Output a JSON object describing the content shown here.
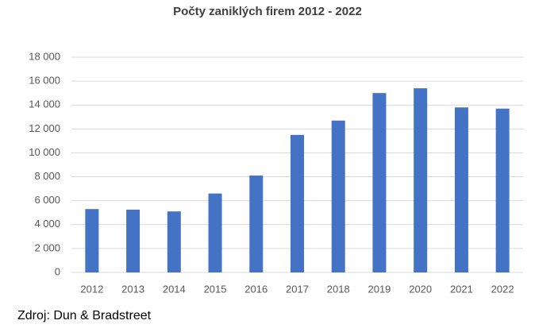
{
  "chart_data": {
    "type": "bar",
    "title": "Počty zaniklých firem 2012 - 2022",
    "categories": [
      "2012",
      "2013",
      "2014",
      "2015",
      "2016",
      "2017",
      "2018",
      "2019",
      "2020",
      "2021",
      "2022"
    ],
    "values": [
      5300,
      5250,
      5100,
      6600,
      8100,
      11500,
      12700,
      15000,
      15400,
      13800,
      13700
    ],
    "color": "#4472c4",
    "ylim": [
      0,
      18000
    ],
    "yticks": [
      0,
      {
        "value": 2000,
        "label": "2 000"
      },
      {
        "value": 4000,
        "label": "4 000"
      },
      {
        "value": 6000,
        "label": "6 000"
      },
      {
        "value": 8000,
        "label": "8 000"
      },
      {
        "value": 10000,
        "label": "10 000"
      },
      {
        "value": 12000,
        "label": "12 000"
      },
      {
        "value": 14000,
        "label": "14 000"
      },
      {
        "value": 16000,
        "label": "16 000"
      },
      {
        "value": 18000,
        "label": "18 000"
      }
    ],
    "grid": true,
    "source": "Zdroj: Dun & Bradstreet"
  }
}
